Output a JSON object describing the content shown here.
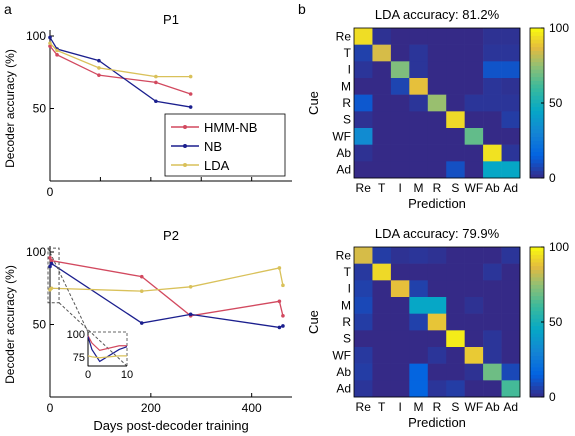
{
  "panel_labels": {
    "a": "a",
    "b": "b"
  },
  "colors": {
    "hmm": "#d2495f",
    "nb": "#1b1f8e",
    "lda": "#d9c15a",
    "axis": "#000000"
  },
  "chart_data": [
    {
      "id": "P1",
      "type": "line",
      "title": "P1",
      "xlabel": "",
      "ylabel": "Decoder accuracy (%)",
      "xlim": [
        0,
        480
      ],
      "ylim": [
        0,
        100
      ],
      "xticks": [
        0,
        100,
        200,
        300,
        400
      ],
      "yticks": [
        50,
        100
      ],
      "legend": {
        "placement": "bottom-right",
        "entries": [
          "HMM-NB",
          "NB",
          "LDA"
        ]
      },
      "series": [
        {
          "name": "HMM-NB",
          "color": "#d2495f",
          "x": [
            0,
            14,
            97,
            210,
            279
          ],
          "y": [
            93,
            87,
            73,
            68,
            60
          ]
        },
        {
          "name": "NB",
          "color": "#1b1f8e",
          "x": [
            0,
            14,
            97,
            210,
            279
          ],
          "y": [
            99,
            91,
            83,
            55,
            51
          ]
        },
        {
          "name": "LDA",
          "color": "#d9c15a",
          "x": [
            0,
            14,
            97,
            210,
            279
          ],
          "y": [
            95,
            90,
            78,
            72,
            72
          ]
        }
      ]
    },
    {
      "id": "P2",
      "type": "line",
      "title": "P2",
      "xlabel": "Days post-decoder training",
      "ylabel": "Decoder accuracy (%)",
      "xlim": [
        0,
        480
      ],
      "ylim": [
        0,
        100
      ],
      "xticks": [
        0,
        200,
        400
      ],
      "yticks": [
        50,
        100
      ],
      "series": [
        {
          "name": "HMM-NB",
          "color": "#d2495f",
          "x": [
            0,
            3,
            182,
            279,
            455,
            462
          ],
          "y": [
            96,
            94,
            83,
            56,
            66,
            56
          ]
        },
        {
          "name": "NB",
          "color": "#1b1f8e",
          "x": [
            0,
            3,
            182,
            279,
            455,
            462
          ],
          "y": [
            90,
            92,
            51,
            57,
            48,
            49
          ]
        },
        {
          "name": "LDA",
          "color": "#d9c15a",
          "x": [
            0,
            3,
            182,
            279,
            455,
            462
          ],
          "y": [
            74,
            75,
            73,
            76,
            89,
            77
          ]
        }
      ],
      "inset": {
        "xlim": [
          0,
          10
        ],
        "ylim": [
          65,
          102
        ],
        "xticks": [
          0,
          10
        ],
        "yticks": [
          75,
          100
        ],
        "series": [
          {
            "name": "HMM-NB",
            "color": "#d2495f",
            "x": [
              0,
              1,
              3,
              8,
              10
            ],
            "y": [
              98,
              90,
              82,
              87,
              87
            ]
          },
          {
            "name": "NB",
            "color": "#1b1f8e",
            "x": [
              0,
              1,
              3,
              8,
              10
            ],
            "y": [
              97,
              83,
              70,
              83,
              86
            ]
          },
          {
            "name": "LDA",
            "color": "#d9c15a",
            "x": [
              0,
              1,
              3,
              8,
              10
            ],
            "y": [
              76,
              75,
              74,
              76,
              76
            ]
          }
        ]
      }
    },
    {
      "id": "CM1",
      "type": "heatmap",
      "title": "LDA accuracy: 81.2%",
      "xlabel": "Prediction",
      "ylabel": "Cue",
      "labels": [
        "Re",
        "T",
        "I",
        "M",
        "R",
        "S",
        "WF",
        "Ab",
        "Ad"
      ],
      "colorbar": {
        "min": 0,
        "max": 100,
        "ticks": [
          0,
          50,
          100
        ]
      },
      "matrix": [
        [
          94,
          2,
          0,
          0,
          0,
          0,
          0,
          2,
          2
        ],
        [
          6,
          85,
          0,
          3,
          0,
          0,
          0,
          3,
          3
        ],
        [
          3,
          0,
          72,
          3,
          0,
          0,
          0,
          11,
          11
        ],
        [
          0,
          0,
          7,
          88,
          0,
          0,
          0,
          3,
          2
        ],
        [
          12,
          0,
          0,
          3,
          76,
          0,
          3,
          3,
          3
        ],
        [
          2,
          0,
          0,
          0,
          0,
          93,
          0,
          0,
          5
        ],
        [
          33,
          0,
          0,
          0,
          0,
          0,
          67,
          0,
          0
        ],
        [
          2,
          0,
          0,
          0,
          0,
          0,
          0,
          95,
          3
        ],
        [
          0,
          0,
          0,
          0,
          0,
          10,
          0,
          45,
          45
        ]
      ]
    },
    {
      "id": "CM2",
      "type": "heatmap",
      "title": "LDA accuracy: 79.9%",
      "xlabel": "Prediction",
      "ylabel": "Cue",
      "labels": [
        "Re",
        "T",
        "I",
        "M",
        "R",
        "S",
        "WF",
        "Ab",
        "Ad"
      ],
      "colorbar": {
        "min": 0,
        "max": 100,
        "ticks": [
          0,
          50,
          100
        ]
      },
      "matrix": [
        [
          85,
          5,
          2,
          3,
          2,
          0,
          0,
          0,
          3
        ],
        [
          4,
          93,
          0,
          0,
          0,
          0,
          0,
          3,
          0
        ],
        [
          6,
          0,
          88,
          6,
          0,
          0,
          0,
          0,
          0
        ],
        [
          8,
          0,
          0,
          45,
          45,
          0,
          2,
          0,
          0
        ],
        [
          5,
          0,
          0,
          6,
          89,
          0,
          0,
          0,
          0
        ],
        [
          0,
          0,
          0,
          0,
          0,
          97,
          0,
          3,
          0
        ],
        [
          4,
          0,
          0,
          0,
          3,
          0,
          90,
          3,
          0
        ],
        [
          5,
          0,
          0,
          16,
          0,
          0,
          2,
          69,
          8
        ],
        [
          3,
          0,
          0,
          16,
          3,
          5,
          0,
          0,
          62
        ]
      ]
    }
  ]
}
